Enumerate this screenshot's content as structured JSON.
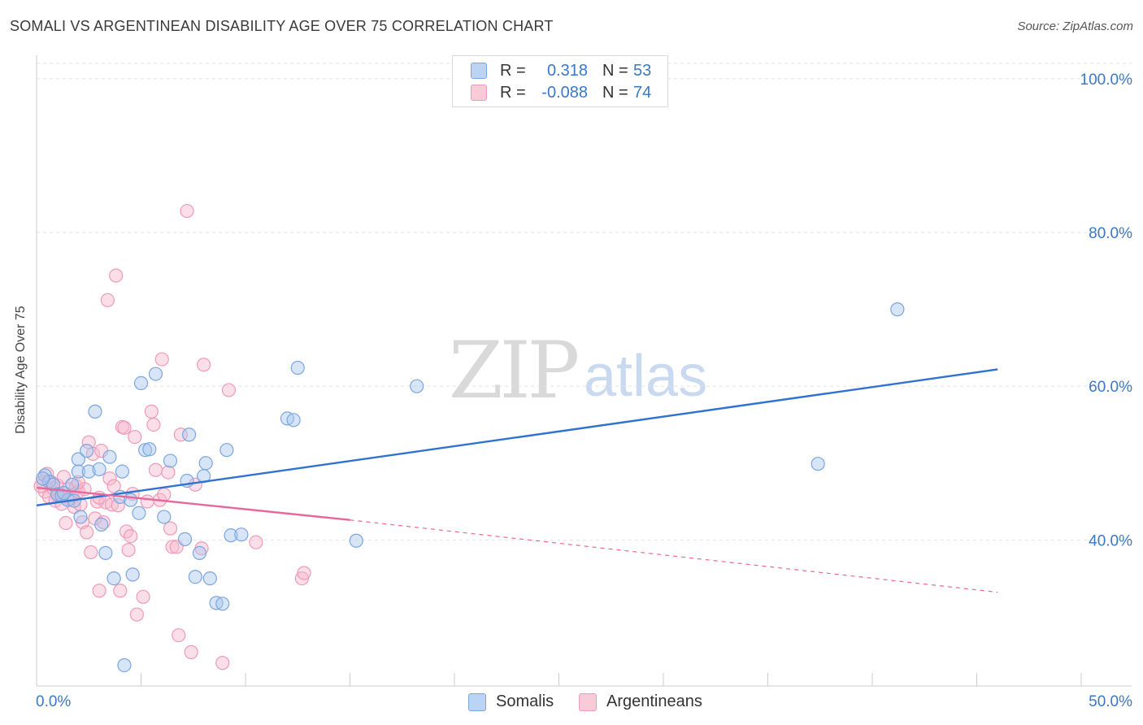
{
  "header": {
    "title": "SOMALI VS ARGENTINEAN DISABILITY AGE OVER 75 CORRELATION CHART",
    "source": "Source: ZipAtlas.com"
  },
  "watermark": {
    "zip": "ZIP",
    "atlas": "atlas"
  },
  "legend": {
    "rows": [
      {
        "r_label": "R =",
        "r_value": "0.318",
        "n_label": "N =",
        "n_value": "53"
      },
      {
        "r_label": "R =",
        "r_value": "-0.088",
        "n_label": "N =",
        "n_value": "74"
      }
    ]
  },
  "bottom_legend": {
    "somalis": "Somalis",
    "argentineans": "Argentineans"
  },
  "colors": {
    "somali_fill": "#a9c6ee",
    "somali_stroke": "#7aa6e0",
    "somali_line": "#2f72d0",
    "argentinean_fill": "#f6b9cc",
    "argentinean_stroke": "#ef9ab6",
    "argentinean_line": "#e8679a",
    "tick_label": "#3a78c8",
    "grid": "#e2e2e2"
  },
  "chart_data": {
    "type": "scatter",
    "title": "SOMALI VS ARGENTINEAN DISABILITY AGE OVER 75 CORRELATION CHART",
    "xlabel": "",
    "ylabel": "Disability Age Over 75",
    "xlim": [
      0,
      50
    ],
    "ylim": [
      21,
      102
    ],
    "x_tick_labels": [
      "0.0%",
      "50.0%"
    ],
    "y_ticks": [
      40,
      60,
      80,
      100
    ],
    "y_tick_labels": [
      "40.0%",
      "60.0%",
      "80.0%",
      "100.0%"
    ],
    "grid": true,
    "series": [
      {
        "name": "Somalis",
        "r": 0.318,
        "n": 53,
        "trend": {
          "x0": 0,
          "y0": 44.5,
          "x1": 46,
          "y1": 62.2,
          "solid_until": 46
        },
        "points": [
          [
            0.4,
            48.4
          ],
          [
            0.6,
            47.6
          ],
          [
            0.8,
            47.2
          ],
          [
            1.0,
            45.9
          ],
          [
            1.2,
            45.8
          ],
          [
            1.5,
            45.2
          ],
          [
            1.7,
            47.2
          ],
          [
            1.8,
            45.1
          ],
          [
            2.0,
            50.5
          ],
          [
            2.0,
            48.9
          ],
          [
            2.1,
            43.0
          ],
          [
            2.4,
            51.6
          ],
          [
            2.5,
            48.9
          ],
          [
            2.8,
            56.7
          ],
          [
            3.0,
            49.2
          ],
          [
            3.1,
            42.0
          ],
          [
            3.3,
            38.3
          ],
          [
            3.5,
            50.8
          ],
          [
            3.7,
            35.0
          ],
          [
            4.0,
            45.6
          ],
          [
            4.1,
            48.9
          ],
          [
            4.2,
            23.7
          ],
          [
            4.5,
            45.2
          ],
          [
            4.6,
            35.5
          ],
          [
            4.9,
            43.5
          ],
          [
            5.0,
            60.4
          ],
          [
            5.2,
            51.7
          ],
          [
            5.4,
            51.8
          ],
          [
            5.7,
            61.6
          ],
          [
            6.1,
            43.0
          ],
          [
            6.4,
            50.3
          ],
          [
            7.1,
            40.1
          ],
          [
            7.2,
            47.7
          ],
          [
            7.3,
            53.7
          ],
          [
            7.6,
            35.2
          ],
          [
            7.8,
            38.3
          ],
          [
            8.0,
            48.3
          ],
          [
            8.1,
            50.0
          ],
          [
            8.3,
            35.0
          ],
          [
            8.6,
            31.8
          ],
          [
            8.9,
            31.7
          ],
          [
            9.1,
            51.7
          ],
          [
            9.3,
            40.6
          ],
          [
            9.8,
            40.7
          ],
          [
            12.0,
            55.8
          ],
          [
            12.3,
            55.6
          ],
          [
            12.5,
            62.4
          ],
          [
            15.3,
            39.9
          ],
          [
            18.2,
            60.0
          ],
          [
            37.4,
            49.9
          ],
          [
            41.2,
            70.0
          ],
          [
            0.3,
            48.0
          ],
          [
            1.3,
            46.1
          ]
        ]
      },
      {
        "name": "Argentineans",
        "r": -0.088,
        "n": 74,
        "trend": {
          "x0": 0,
          "y0": 46.8,
          "x1": 15,
          "y1": 42.6,
          "solid_until": 15,
          "dashed_x1": 46,
          "dashed_y1": 33.2
        },
        "points": [
          [
            0.3,
            47.6
          ],
          [
            0.4,
            46.3
          ],
          [
            0.5,
            48.6
          ],
          [
            0.6,
            45.6
          ],
          [
            0.7,
            47.5
          ],
          [
            0.8,
            46.7
          ],
          [
            0.9,
            45.1
          ],
          [
            1.0,
            47.1
          ],
          [
            1.1,
            45.8
          ],
          [
            1.2,
            44.7
          ],
          [
            1.3,
            48.2
          ],
          [
            1.4,
            42.2
          ],
          [
            1.5,
            46.6
          ],
          [
            1.6,
            45.3
          ],
          [
            1.7,
            45.8
          ],
          [
            1.8,
            44.3
          ],
          [
            1.9,
            47.0
          ],
          [
            2.0,
            46.3
          ],
          [
            2.1,
            44.6
          ],
          [
            2.2,
            42.3
          ],
          [
            2.3,
            46.6
          ],
          [
            2.4,
            41.0
          ],
          [
            2.5,
            52.7
          ],
          [
            2.6,
            38.4
          ],
          [
            2.7,
            51.2
          ],
          [
            2.8,
            42.8
          ],
          [
            2.9,
            45.0
          ],
          [
            3.0,
            33.4
          ],
          [
            3.1,
            51.6
          ],
          [
            3.2,
            42.3
          ],
          [
            3.3,
            44.9
          ],
          [
            3.4,
            71.2
          ],
          [
            3.5,
            48.0
          ],
          [
            3.6,
            44.6
          ],
          [
            3.7,
            47.0
          ],
          [
            3.8,
            74.4
          ],
          [
            3.9,
            44.5
          ],
          [
            4.0,
            33.4
          ],
          [
            4.1,
            54.7
          ],
          [
            4.2,
            54.6
          ],
          [
            4.3,
            41.1
          ],
          [
            4.4,
            38.7
          ],
          [
            4.5,
            40.5
          ],
          [
            4.6,
            46.0
          ],
          [
            4.7,
            53.4
          ],
          [
            4.8,
            30.3
          ],
          [
            5.1,
            32.6
          ],
          [
            5.3,
            45.0
          ],
          [
            5.5,
            56.7
          ],
          [
            5.6,
            55.0
          ],
          [
            5.7,
            49.1
          ],
          [
            5.9,
            45.2
          ],
          [
            6.0,
            63.5
          ],
          [
            6.1,
            45.9
          ],
          [
            6.3,
            48.8
          ],
          [
            6.4,
            41.5
          ],
          [
            6.5,
            39.1
          ],
          [
            6.7,
            39.1
          ],
          [
            6.8,
            27.6
          ],
          [
            6.9,
            53.7
          ],
          [
            7.2,
            82.8
          ],
          [
            7.4,
            25.4
          ],
          [
            7.6,
            47.2
          ],
          [
            7.9,
            38.9
          ],
          [
            8.0,
            62.8
          ],
          [
            8.9,
            24.0
          ],
          [
            9.2,
            59.5
          ],
          [
            10.5,
            39.7
          ],
          [
            12.7,
            35.0
          ],
          [
            12.8,
            35.7
          ],
          [
            0.2,
            47.0
          ],
          [
            1.0,
            46.0
          ],
          [
            2.0,
            47.5
          ],
          [
            3.0,
            45.5
          ]
        ]
      }
    ]
  }
}
